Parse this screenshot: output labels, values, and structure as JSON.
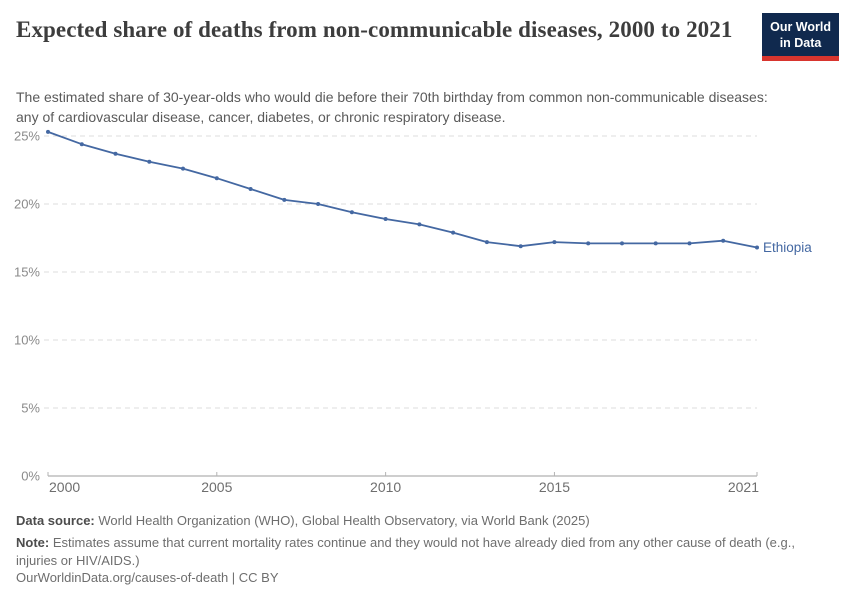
{
  "header": {
    "title": "Expected share of deaths from non-communicable diseases, 2000 to 2021",
    "logo": {
      "line1": "Our World",
      "line2": "in Data"
    }
  },
  "subtitle_lines": [
    "The estimated share of 30-year-olds who would die before their 70th birthday from common non-communicable diseases:",
    "any of cardiovascular disease, cancer, diabetes, or chronic respiratory disease."
  ],
  "chart_data": {
    "type": "line",
    "title": "Expected share of deaths from non-communicable diseases, 2000 to 2021",
    "xlabel": "",
    "ylabel": "",
    "x": [
      2000,
      2001,
      2002,
      2003,
      2004,
      2005,
      2006,
      2007,
      2008,
      2009,
      2010,
      2011,
      2012,
      2013,
      2014,
      2015,
      2016,
      2017,
      2018,
      2019,
      2020,
      2021
    ],
    "series": [
      {
        "name": "Ethiopia",
        "color": "#4468a2",
        "values": [
          25.3,
          24.4,
          23.7,
          23.1,
          22.6,
          21.9,
          21.1,
          20.3,
          20.0,
          19.4,
          18.9,
          18.5,
          17.9,
          17.2,
          16.9,
          17.2,
          17.1,
          17.1,
          17.1,
          17.1,
          17.3,
          16.8
        ]
      }
    ],
    "ylim": [
      0,
      25
    ],
    "yticks": [
      0,
      5,
      10,
      15,
      20,
      25
    ],
    "ytick_suffix": "%",
    "xticks": [
      2000,
      2005,
      2010,
      2015,
      2021
    ],
    "grid": "horizontal-dashed",
    "legend_position": "end-of-line"
  },
  "footer": {
    "data_source_label": "Data source:",
    "data_source": "World Health Organization (WHO), Global Health Observatory, via World Bank (2025)",
    "note_label": "Note:",
    "note_lines": [
      "Estimates assume that current mortality rates continue and they would not have already died from any other cause of death (e.g.,",
      "injuries or HIV/AIDS.)"
    ],
    "citation": "OurWorldinData.org/causes-of-death | CC BY"
  },
  "colors": {
    "line": "#4468a2",
    "logo_background": "#10294e",
    "logo_stripe": "#d8352e",
    "gridline": "#dcdcdc",
    "axis": "#9e9e9e",
    "tick_label": "#6e6e6e"
  }
}
